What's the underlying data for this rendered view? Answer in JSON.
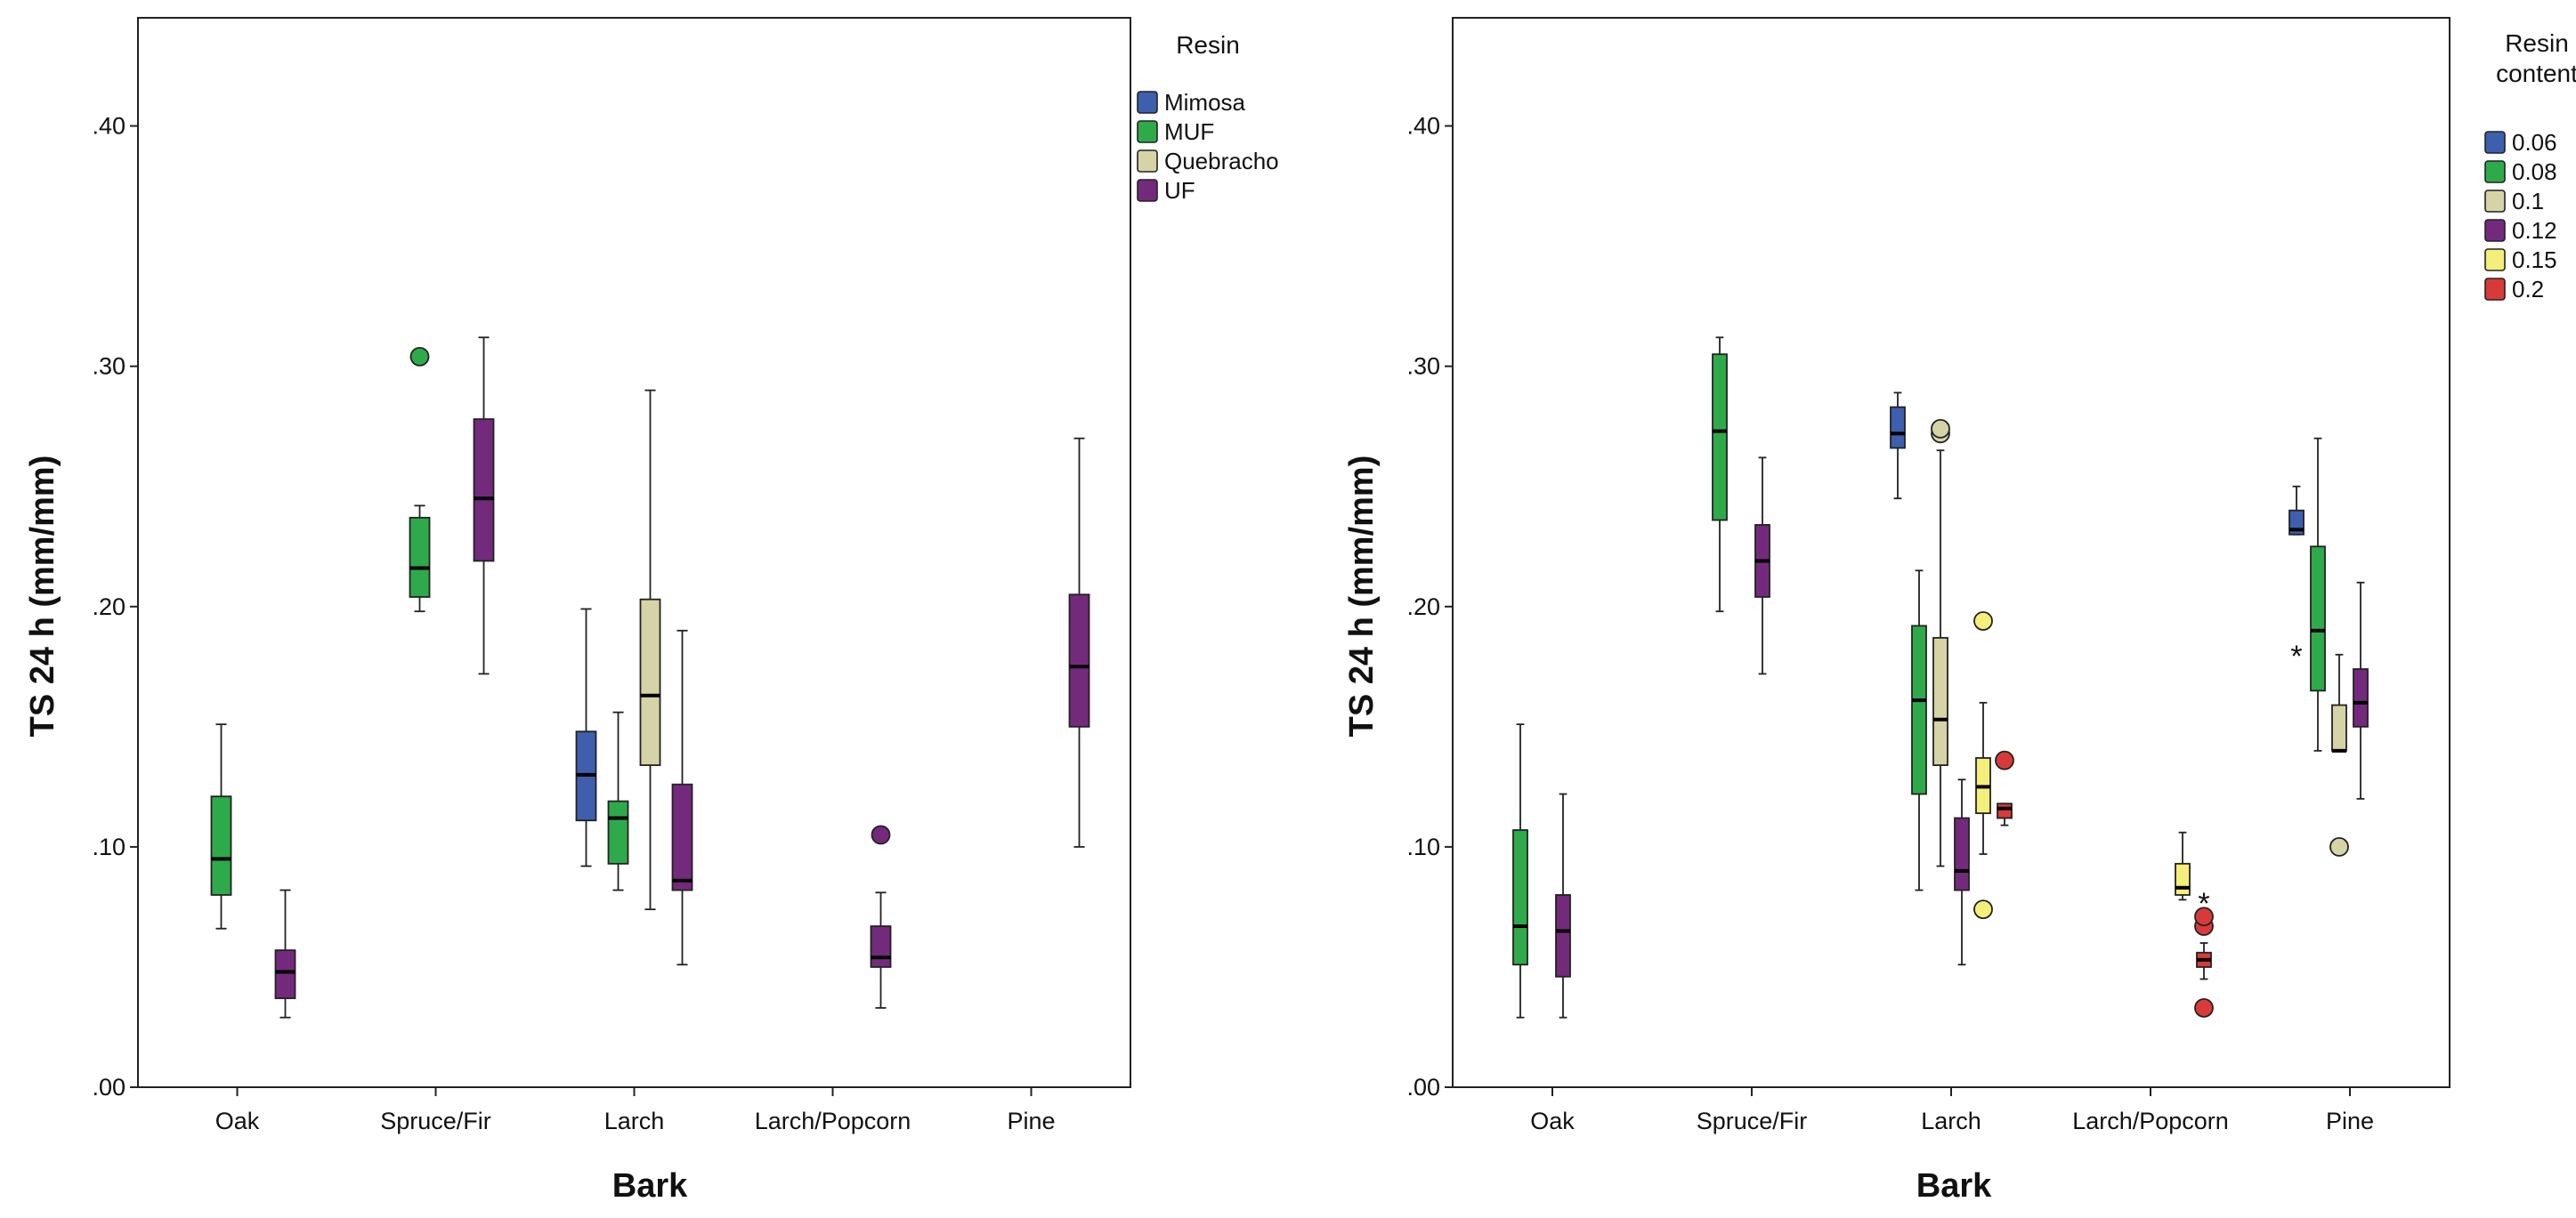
{
  "chart_data": [
    {
      "type": "boxplot",
      "xlabel": "Bark",
      "ylabel": "TS 24 h (mm/mm)",
      "ylim": [
        0,
        0.445
      ],
      "yticks": [
        ".00",
        ".10",
        ".20",
        ".30",
        ".40"
      ],
      "ytick_values": [
        0,
        0.1,
        0.2,
        0.3,
        0.4
      ],
      "categories": [
        "Oak",
        "Spruce/Fir",
        "Larch",
        "Larch/Popcorn",
        "Pine"
      ],
      "legend": {
        "title": "Resin",
        "position": "right",
        "items": [
          {
            "label": "Mimosa",
            "color": "#3d5fae"
          },
          {
            "label": "MUF",
            "color": "#2eaa4a"
          },
          {
            "label": "Quebracho",
            "color": "#d6d3a6"
          },
          {
            "label": "UF",
            "color": "#742a7c"
          }
        ]
      },
      "boxes": [
        {
          "category": "Oak",
          "group": "MUF",
          "slot": 1,
          "slots": 4,
          "whisker_low": 0.066,
          "q1": 0.08,
          "median": 0.095,
          "q3": 0.121,
          "whisker_high": 0.151
        },
        {
          "category": "Oak",
          "group": "UF",
          "slot": 3,
          "slots": 4,
          "whisker_low": 0.029,
          "q1": 0.037,
          "median": 0.048,
          "q3": 0.057,
          "whisker_high": 0.082
        },
        {
          "category": "Spruce/Fir",
          "group": "MUF",
          "slot": 1,
          "slots": 4,
          "whisker_low": 0.198,
          "q1": 0.204,
          "median": 0.216,
          "q3": 0.237,
          "whisker_high": 0.242,
          "outliers": [
            {
              "value": 0.304,
              "marker": "circle"
            }
          ]
        },
        {
          "category": "Spruce/Fir",
          "group": "UF",
          "slot": 3,
          "slots": 4,
          "whisker_low": 0.172,
          "q1": 0.219,
          "median": 0.245,
          "q3": 0.278,
          "whisker_high": 0.312
        },
        {
          "category": "Larch",
          "group": "Mimosa",
          "slot": 0,
          "slots": 4,
          "whisker_low": 0.092,
          "q1": 0.111,
          "median": 0.13,
          "q3": 0.148,
          "whisker_high": 0.199
        },
        {
          "category": "Larch",
          "group": "MUF",
          "slot": 1,
          "slots": 4,
          "whisker_low": 0.082,
          "q1": 0.093,
          "median": 0.112,
          "q3": 0.119,
          "whisker_high": 0.156
        },
        {
          "category": "Larch",
          "group": "Quebracho",
          "slot": 2,
          "slots": 4,
          "whisker_low": 0.074,
          "q1": 0.134,
          "median": 0.163,
          "q3": 0.203,
          "whisker_high": 0.29
        },
        {
          "category": "Larch",
          "group": "UF",
          "slot": 3,
          "slots": 4,
          "whisker_low": 0.051,
          "q1": 0.082,
          "median": 0.086,
          "q3": 0.126,
          "whisker_high": 0.19
        },
        {
          "category": "Larch/Popcorn",
          "group": "UF",
          "slot": 3,
          "slots": 4,
          "whisker_low": 0.033,
          "q1": 0.05,
          "median": 0.054,
          "q3": 0.067,
          "whisker_high": 0.081,
          "outliers": [
            {
              "value": 0.105,
              "marker": "circle"
            }
          ]
        },
        {
          "category": "Pine",
          "group": "UF",
          "slot": 3,
          "slots": 4,
          "whisker_low": 0.1,
          "q1": 0.15,
          "median": 0.175,
          "q3": 0.205,
          "whisker_high": 0.27
        }
      ]
    },
    {
      "type": "boxplot",
      "xlabel": "Bark",
      "ylabel": "TS 24 h (mm/mm)",
      "ylim": [
        0,
        0.445
      ],
      "yticks": [
        ".00",
        ".10",
        ".20",
        ".30",
        ".40"
      ],
      "ytick_values": [
        0,
        0.1,
        0.2,
        0.3,
        0.4
      ],
      "categories": [
        "Oak",
        "Spruce/Fir",
        "Larch",
        "Larch/Popcorn",
        "Pine"
      ],
      "legend": {
        "title": "Resin content",
        "position": "right",
        "items": [
          {
            "label": "0.06",
            "color": "#3d5fae"
          },
          {
            "label": "0.08",
            "color": "#2eaa4a"
          },
          {
            "label": "0.1",
            "color": "#d6d3a6"
          },
          {
            "label": "0.12",
            "color": "#742a7c"
          },
          {
            "label": "0.15",
            "color": "#f4ee7a"
          },
          {
            "label": "0.2",
            "color": "#d83a3a"
          }
        ]
      },
      "boxes": [
        {
          "category": "Oak",
          "group": "0.08",
          "slot": 1,
          "slots": 6,
          "whisker_low": 0.029,
          "q1": 0.051,
          "median": 0.067,
          "q3": 0.107,
          "whisker_high": 0.151
        },
        {
          "category": "Oak",
          "group": "0.12",
          "slot": 3,
          "slots": 6,
          "whisker_low": 0.029,
          "q1": 0.046,
          "median": 0.065,
          "q3": 0.08,
          "whisker_high": 0.122
        },
        {
          "category": "Spruce/Fir",
          "group": "0.08",
          "slot": 1,
          "slots": 6,
          "whisker_low": 0.198,
          "q1": 0.236,
          "median": 0.273,
          "q3": 0.305,
          "whisker_high": 0.312
        },
        {
          "category": "Spruce/Fir",
          "group": "0.12",
          "slot": 3,
          "slots": 6,
          "whisker_low": 0.172,
          "q1": 0.204,
          "median": 0.219,
          "q3": 0.234,
          "whisker_high": 0.262
        },
        {
          "category": "Larch",
          "group": "0.06",
          "slot": 0,
          "slots": 6,
          "whisker_low": 0.245,
          "q1": 0.266,
          "median": 0.272,
          "q3": 0.283,
          "whisker_high": 0.289
        },
        {
          "category": "Larch",
          "group": "0.08",
          "slot": 1,
          "slots": 6,
          "whisker_low": 0.082,
          "q1": 0.122,
          "median": 0.161,
          "q3": 0.192,
          "whisker_high": 0.215
        },
        {
          "category": "Larch",
          "group": "0.1",
          "slot": 2,
          "slots": 6,
          "whisker_low": 0.092,
          "q1": 0.134,
          "median": 0.153,
          "q3": 0.187,
          "whisker_high": 0.265,
          "outliers": [
            {
              "value": 0.272,
              "marker": "circle"
            },
            {
              "value": 0.274,
              "marker": "circle"
            }
          ]
        },
        {
          "category": "Larch",
          "group": "0.12",
          "slot": 3,
          "slots": 6,
          "whisker_low": 0.051,
          "q1": 0.082,
          "median": 0.09,
          "q3": 0.112,
          "whisker_high": 0.128
        },
        {
          "category": "Larch",
          "group": "0.15",
          "slot": 4,
          "slots": 6,
          "whisker_low": 0.097,
          "q1": 0.114,
          "median": 0.125,
          "q3": 0.137,
          "whisker_high": 0.16,
          "outliers": [
            {
              "value": 0.074,
              "marker": "circle"
            },
            {
              "value": 0.194,
              "marker": "circle"
            }
          ]
        },
        {
          "category": "Larch",
          "group": "0.2",
          "slot": 5,
          "slots": 6,
          "whisker_low": 0.109,
          "q1": 0.112,
          "median": 0.116,
          "q3": 0.118,
          "whisker_high": 0.118,
          "outliers": [
            {
              "value": 0.136,
              "marker": "circle"
            }
          ]
        },
        {
          "category": "Larch/Popcorn",
          "group": "0.15",
          "slot": 4,
          "slots": 6,
          "whisker_low": 0.078,
          "q1": 0.08,
          "median": 0.083,
          "q3": 0.093,
          "whisker_high": 0.106
        },
        {
          "category": "Larch/Popcorn",
          "group": "0.2",
          "slot": 5,
          "slots": 6,
          "whisker_low": 0.045,
          "q1": 0.05,
          "median": 0.053,
          "q3": 0.056,
          "whisker_high": 0.06,
          "outliers": [
            {
              "value": 0.033,
              "marker": "circle"
            },
            {
              "value": 0.067,
              "marker": "circle"
            },
            {
              "value": 0.071,
              "marker": "circle"
            },
            {
              "value": 0.077,
              "marker": "star"
            }
          ]
        },
        {
          "category": "Pine",
          "group": "0.06",
          "slot": 0,
          "slots": 6,
          "whisker_low": 0.23,
          "q1": 0.23,
          "median": 0.232,
          "q3": 0.24,
          "whisker_high": 0.25,
          "outliers": [
            {
              "value": 0.18,
              "marker": "star"
            }
          ]
        },
        {
          "category": "Pine",
          "group": "0.08",
          "slot": 1,
          "slots": 6,
          "whisker_low": 0.14,
          "q1": 0.165,
          "median": 0.19,
          "q3": 0.225,
          "whisker_high": 0.27
        },
        {
          "category": "Pine",
          "group": "0.1",
          "slot": 2,
          "slots": 6,
          "whisker_low": 0.14,
          "q1": 0.14,
          "median": 0.14,
          "q3": 0.159,
          "whisker_high": 0.18,
          "outliers": [
            {
              "value": 0.1,
              "marker": "circle"
            }
          ]
        },
        {
          "category": "Pine",
          "group": "0.12",
          "slot": 3,
          "slots": 6,
          "whisker_low": 0.12,
          "q1": 0.15,
          "median": 0.16,
          "q3": 0.174,
          "whisker_high": 0.21
        }
      ]
    }
  ]
}
